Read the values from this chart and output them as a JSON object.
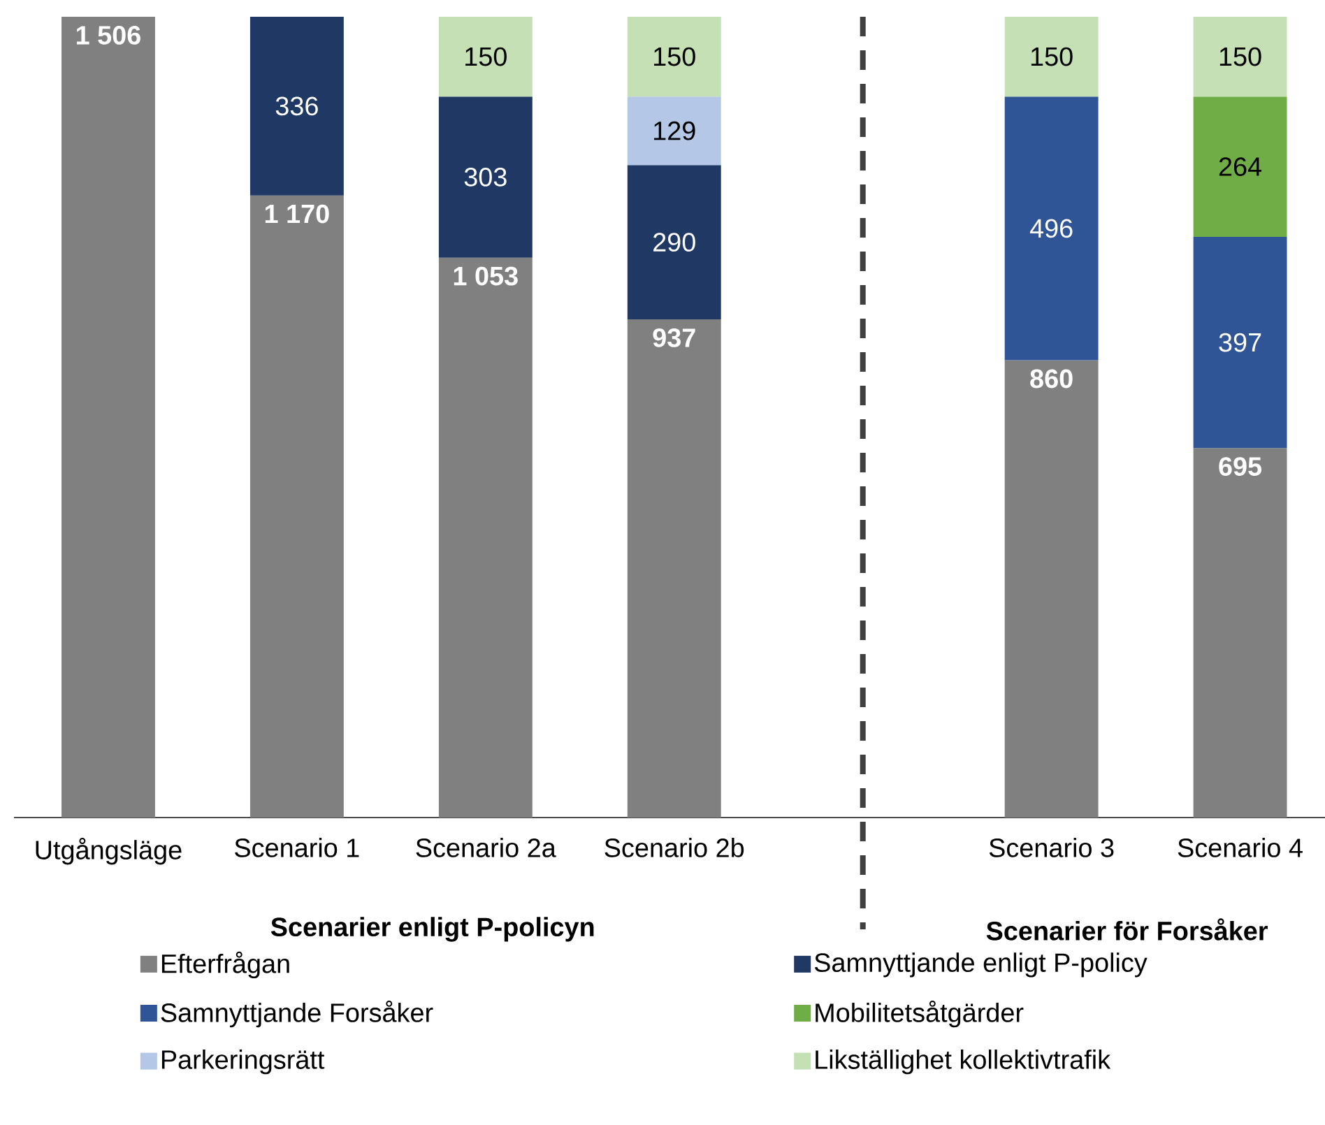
{
  "chart_data": {
    "type": "bar",
    "stacked": true,
    "categories": [
      "Utgångsläge",
      "Scenario 1",
      "Scenario 2a",
      "Scenario 2b",
      null,
      "Scenario 3",
      "Scenario 4"
    ],
    "series": [
      {
        "name": "Efterfrågan",
        "color": "#808080",
        "values": [
          1506,
          1170,
          1053,
          937,
          null,
          860,
          695
        ],
        "value_labels": [
          "1 506",
          "1 170",
          "1 053",
          "937",
          null,
          "860",
          "695"
        ]
      },
      {
        "name": "Samnyttjande enligt P-policy",
        "color": "#1f3864",
        "values": [
          null,
          336,
          303,
          290,
          null,
          null,
          null
        ],
        "value_labels": [
          null,
          "336",
          "303",
          "290",
          null,
          null,
          null
        ]
      },
      {
        "name": "Samnyttjande Forsåker",
        "color": "#2f5597",
        "values": [
          null,
          null,
          null,
          null,
          null,
          496,
          397
        ],
        "value_labels": [
          null,
          null,
          null,
          null,
          null,
          "496",
          "397"
        ]
      },
      {
        "name": "Mobilitetsåtgärder",
        "color": "#70ad47",
        "values": [
          null,
          null,
          null,
          null,
          null,
          null,
          264
        ],
        "value_labels": [
          null,
          null,
          null,
          null,
          null,
          null,
          "264"
        ]
      },
      {
        "name": "Parkeringsrätt",
        "color": "#b4c7e7",
        "values": [
          null,
          null,
          null,
          129,
          null,
          null,
          null
        ],
        "value_labels": [
          null,
          null,
          null,
          "129",
          null,
          null,
          null
        ]
      },
      {
        "name": "Likställighet kollektivtrafik",
        "color": "#c5e0b4",
        "values": [
          null,
          null,
          150,
          150,
          null,
          150,
          150
        ],
        "value_labels": [
          null,
          null,
          "150",
          "150",
          null,
          "150",
          "150"
        ]
      }
    ],
    "ylim": [
      0,
      1506
    ],
    "tick_labels": "x",
    "legend": "bottom",
    "annotations": [
      "Scenarier enligt P-policyn",
      "Scenarier för Forsåker"
    ]
  }
}
